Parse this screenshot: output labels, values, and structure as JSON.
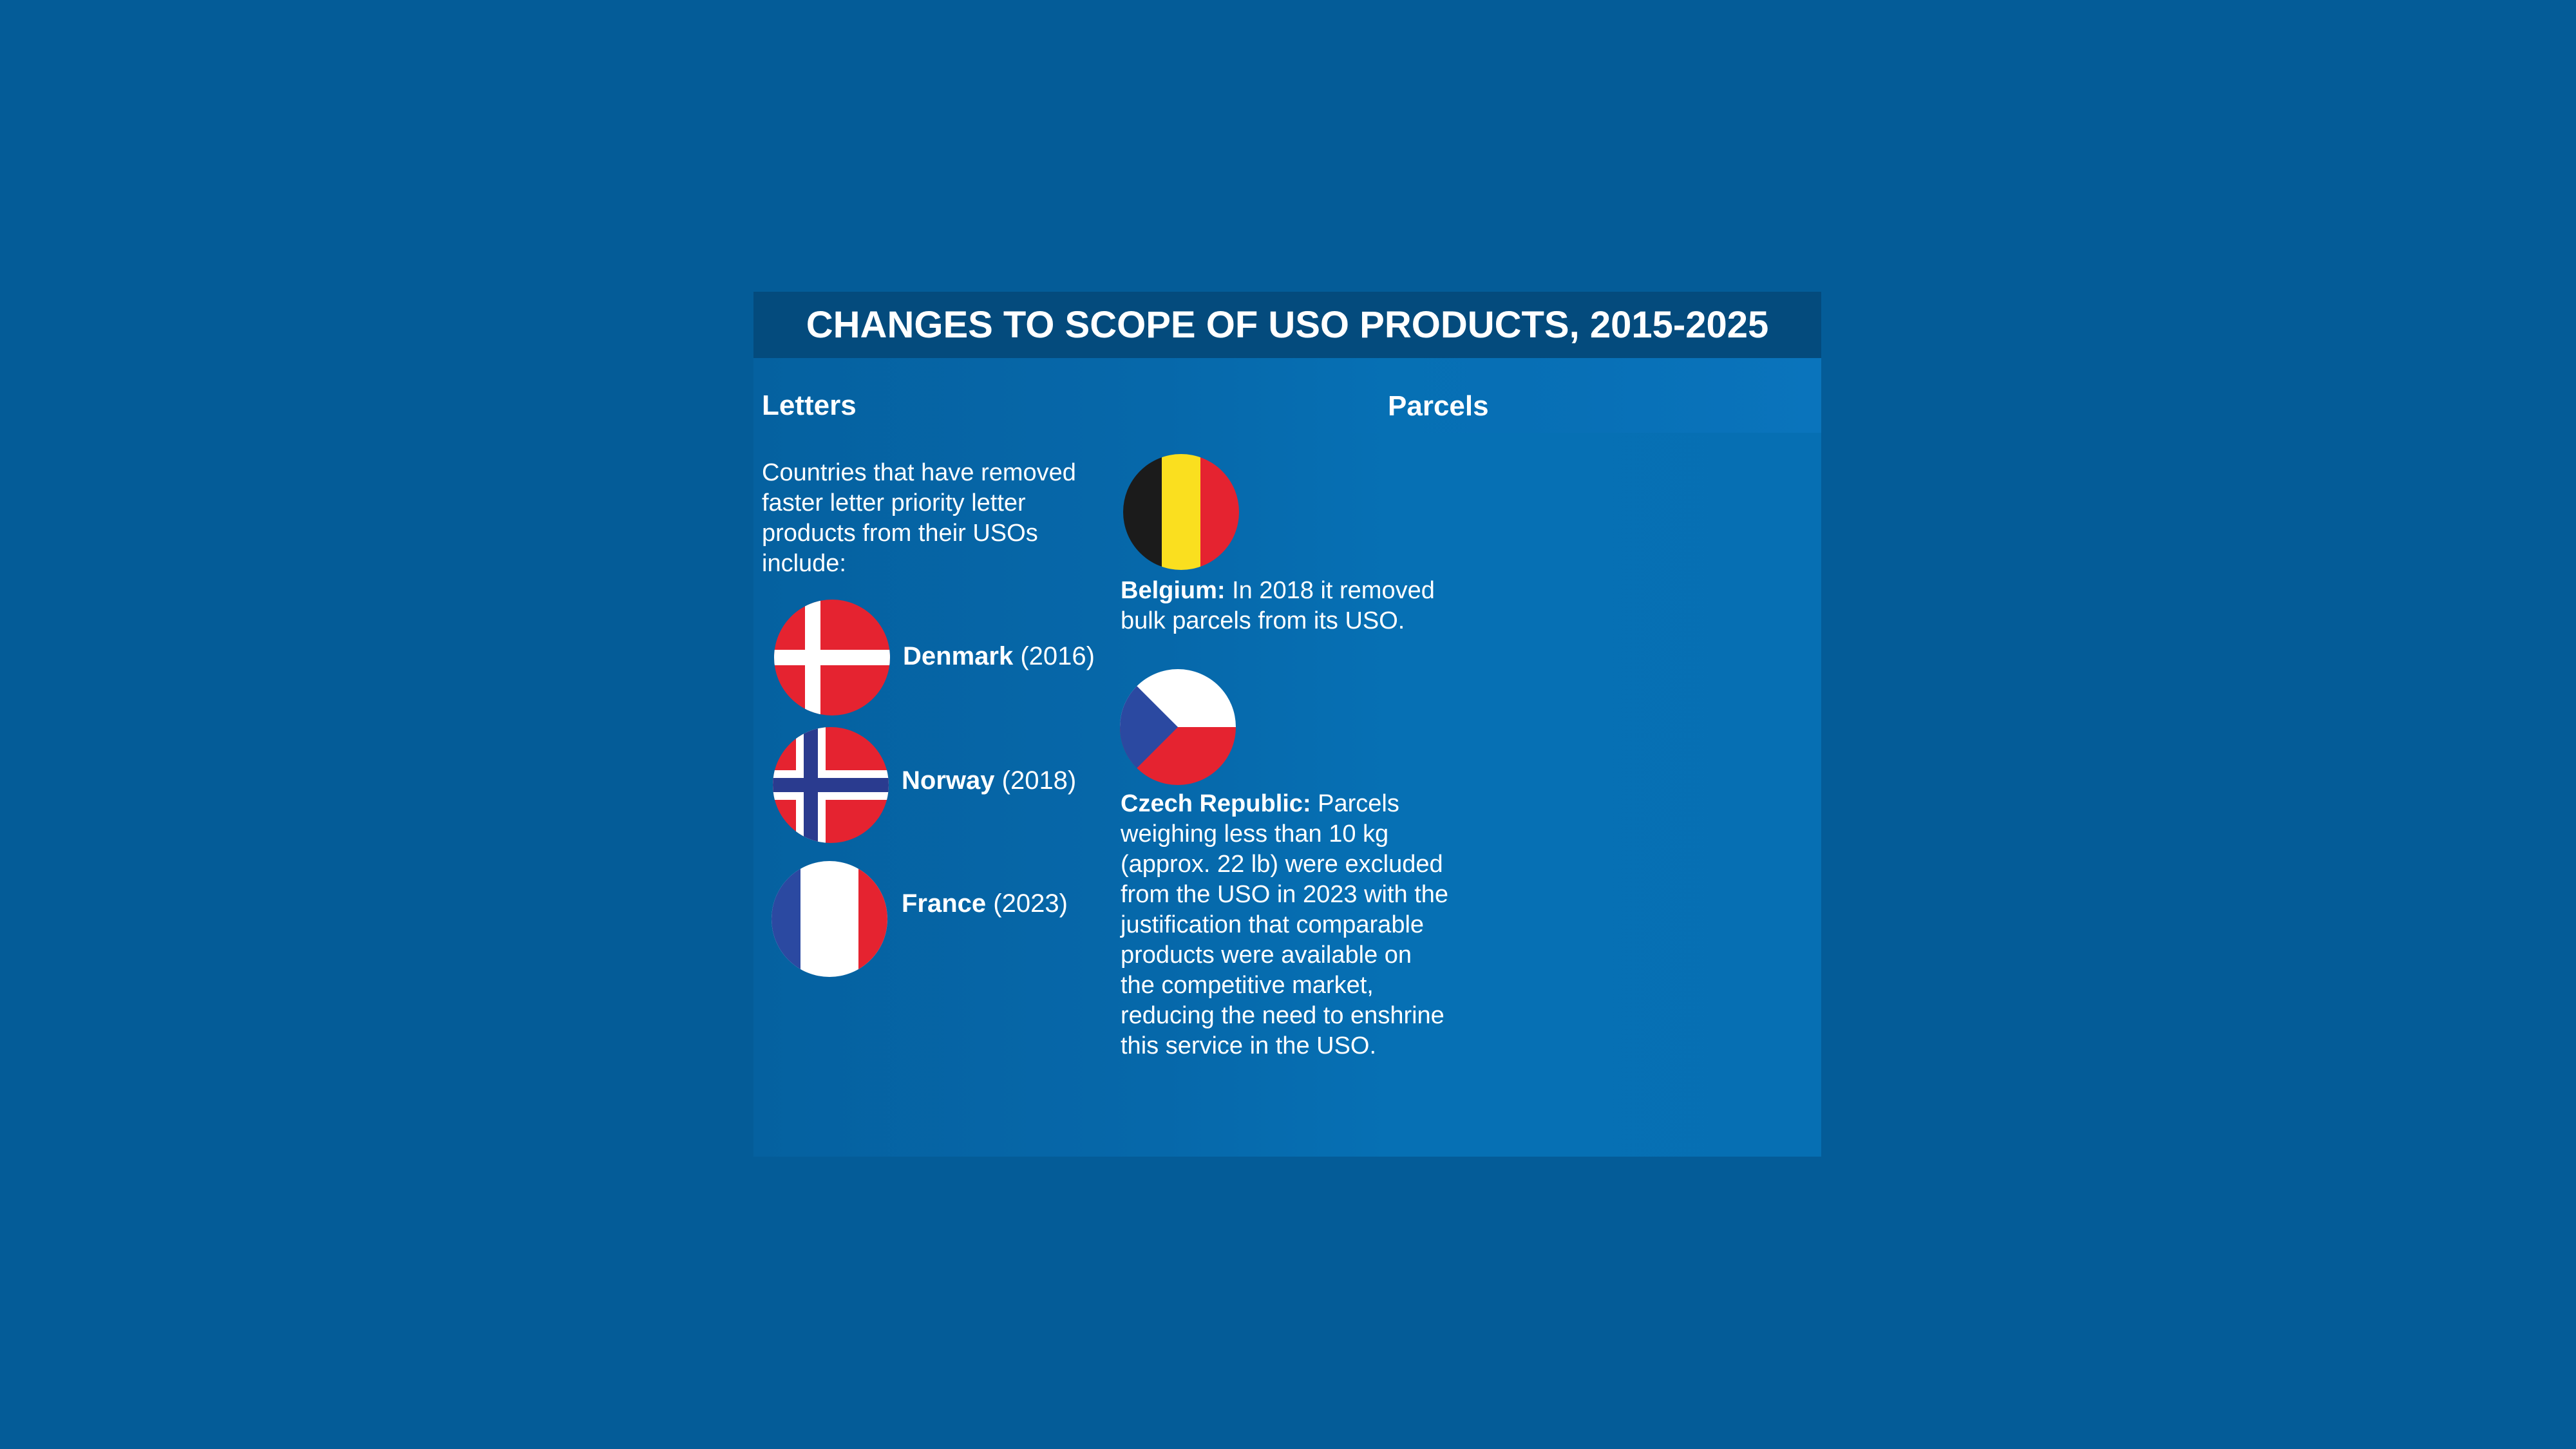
{
  "title": "CHANGES TO SCOPE OF USO PRODUCTS, 2015-2025",
  "letters": {
    "heading": "Letters",
    "intro": "Countries that have removed faster letter priority letter products from their USOs include:",
    "countries": [
      {
        "name": "Denmark",
        "year": "(2016)",
        "flag_icon": "denmark-flag-icon"
      },
      {
        "name": "Norway",
        "year": "(2018)",
        "flag_icon": "norway-flag-icon"
      },
      {
        "name": "France",
        "year": "(2023)",
        "flag_icon": "france-flag-icon"
      }
    ]
  },
  "parcels": {
    "heading": "Parcels",
    "entries": [
      {
        "country": "Belgium:",
        "text": " In 2018 it removed bulk parcels from its USO.",
        "flag_icon": "belgium-flag-icon"
      },
      {
        "country": "Czech Republic:",
        "text": " Parcels weighing less than 10 kg (approx. 22 lb) were excluded from the USO in 2023 with the justification that comparable products were available on the competitive market, reducing the need to enshrine this service in the USO.",
        "flag_icon": "czech-flag-icon"
      }
    ]
  },
  "colors": {
    "page_background": "#045c98",
    "title_bar": "#044b7d",
    "text": "#ffffff"
  }
}
